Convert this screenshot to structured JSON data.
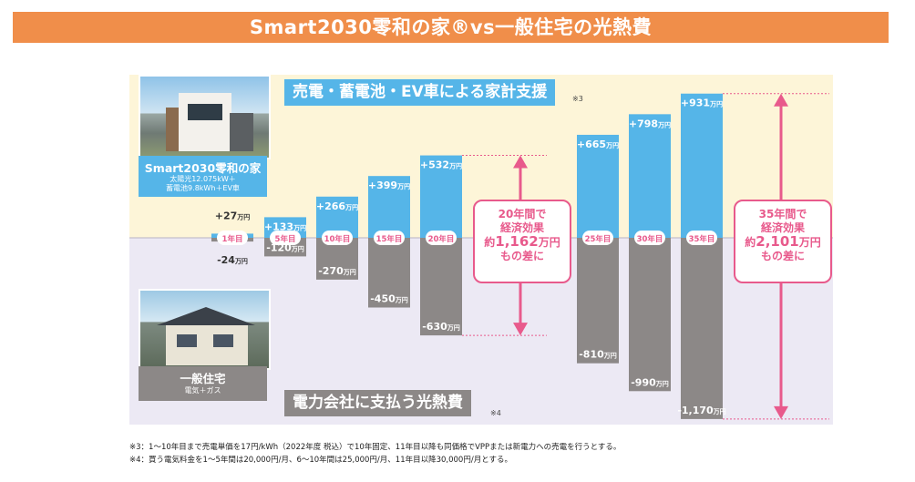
{
  "title": "Smart2030零和の家®vs一般住宅の光熱費",
  "top_label": "売電・蓄電池・EV車による家計支援",
  "top_note": "※3",
  "bottom_label": "電力会社に支払う光熱費",
  "bottom_note": "※4",
  "house_a": {
    "name": "Smart2030零和の家",
    "spec1": "太陽光12.075kW＋",
    "spec2": "蓄電池9.8kWh＋EV車"
  },
  "house_b": {
    "name": "一般住宅",
    "spec": "電気＋ガス"
  },
  "effect_20": {
    "line1": "20年間で",
    "line2": "経済効果",
    "prefix": "約",
    "amount": "1,162",
    "unit": "万円",
    "line4": "もの差に"
  },
  "effect_35": {
    "line1": "35年間で",
    "line2": "経済効果",
    "prefix": "約",
    "amount": "2,101",
    "unit": "万円",
    "line4": "もの差に"
  },
  "footnotes": [
    "※3：1〜10年目まで売電単価を17円/kWh（2022年度 税込）で10年固定、11年目以降も同価格でVPPまたは新電力への売電を行うとする。",
    "※4：買う電気料金を1〜5年間は20,000円/月、6〜10年間は25,000円/月、11年目以降30,000円/月とする。"
  ],
  "chart_data": {
    "type": "bar",
    "categories": [
      "1年目",
      "5年目",
      "10年目",
      "15年目",
      "20年目",
      "25年目",
      "30年目",
      "35年目"
    ],
    "series": [
      {
        "values": [
          27,
          133,
          266,
          399,
          532,
          665,
          798,
          931
        ],
        "labels": [
          "+27",
          "+133",
          "+266",
          "+399",
          "+532",
          "+665",
          "+798",
          "+931"
        ]
      },
      {
        "values": [
          -24,
          -120,
          -270,
          -450,
          -630,
          -810,
          -990,
          -1170
        ],
        "labels": [
          "-24",
          "-120",
          "-270",
          "-450",
          "-630",
          "-810",
          "-990",
          "-1,170"
        ]
      }
    ],
    "unit": "万円",
    "colors": {
      "positive": "#55b5e8",
      "negative": "#8c8887",
      "accent": "#e85a8c",
      "top_band": "#fdf5d8",
      "bottom_band": "#ece9f4"
    }
  }
}
